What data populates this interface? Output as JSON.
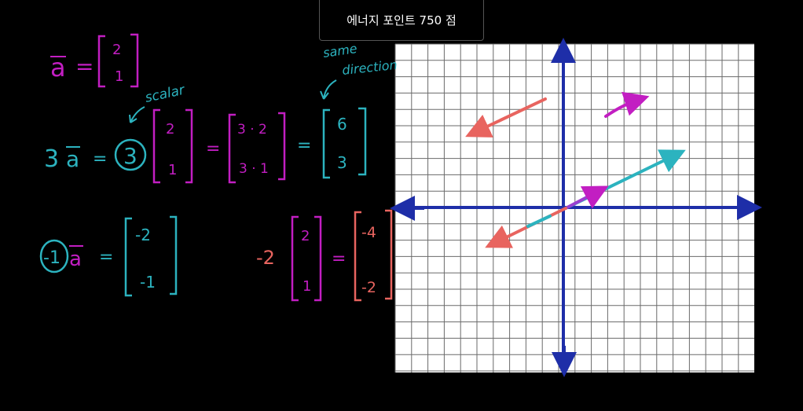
{
  "notification": {
    "energy_points": "에너지 포인트 750 점"
  },
  "colors": {
    "magenta": "#c21ec2",
    "teal": "#2cb3bf",
    "salmon": "#e8645f",
    "axis": "#1e2ea8",
    "grid_line": "#666666"
  },
  "board": {
    "vector_a": {
      "label": "a",
      "equals": "=",
      "components": [
        "2",
        "1"
      ]
    },
    "annotations": {
      "scalar": "scalar",
      "same_direction_line1": "same",
      "same_direction_line2": "direction"
    },
    "three_a": {
      "scalar": "3",
      "label": "a",
      "equals1": "=",
      "circled_scalar": "3",
      "components": [
        "2",
        "1"
      ],
      "equals2": "=",
      "product": [
        "3 · 2",
        "3 · 1"
      ],
      "equals3": "=",
      "result": [
        "6",
        "3"
      ]
    },
    "neg_one_a": {
      "scalar": "-1",
      "label": "a",
      "equals": "=",
      "result": [
        "-2",
        "-1"
      ]
    },
    "neg_two": {
      "scalar": "-2",
      "components": [
        "2",
        "1"
      ],
      "equals": "=",
      "result": [
        "-4",
        "-2"
      ]
    }
  }
}
